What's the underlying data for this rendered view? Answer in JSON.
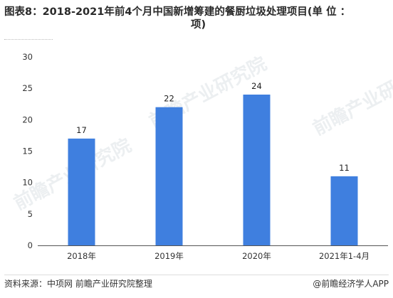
{
  "title": {
    "line1": "图表8：2018-2021年前4个月中国新增筹建的餐厨垃圾处理项目(单 位 ：",
    "line2": "项)"
  },
  "watermark": "前瞻产业研究院",
  "footer": {
    "source": "资料来源：中项网 前瞻产业研究院整理",
    "brand": "@前瞻经济学人APP"
  },
  "colors": {
    "bar": "#3f7fdf",
    "axis": "#555555"
  },
  "chart_data": {
    "type": "bar",
    "categories": [
      "2018年",
      "2019年",
      "2020年",
      "2021年1-4月"
    ],
    "values": [
      17,
      22,
      24,
      11
    ],
    "ylim": [
      0,
      30
    ],
    "yticks": [
      0,
      5,
      10,
      15,
      20,
      25,
      30
    ],
    "grid": false,
    "data_labels": true,
    "title": "",
    "xlabel": "",
    "ylabel": ""
  }
}
